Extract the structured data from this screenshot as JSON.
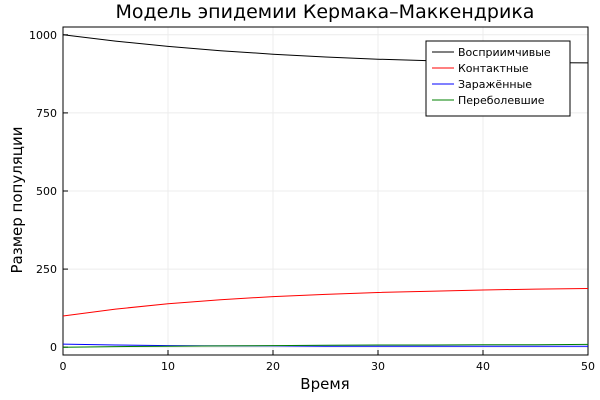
{
  "chart_data": {
    "type": "line",
    "title": "Модель эпидемии Кермака–Маккендрика",
    "xlabel": "Время",
    "ylabel": "Размер популяции",
    "xlim": [
      0,
      50
    ],
    "ylim": [
      -25,
      1025
    ],
    "xticks": [
      0,
      10,
      20,
      30,
      40,
      50
    ],
    "yticks": [
      0,
      250,
      500,
      750,
      1000
    ],
    "grid": true,
    "legend_position": "top-right",
    "series": [
      {
        "name": "Восприимчивые",
        "color": "#000000",
        "x": [
          0,
          5,
          10,
          15,
          20,
          25,
          30,
          35,
          40,
          45,
          50
        ],
        "values": [
          1000,
          980,
          963,
          949,
          938,
          929,
          922,
          917,
          913,
          911,
          910
        ]
      },
      {
        "name": "Контактные",
        "color": "#ff0000",
        "x": [
          0,
          5,
          10,
          15,
          20,
          25,
          30,
          35,
          40,
          45,
          50
        ],
        "values": [
          100,
          122,
          139,
          152,
          162,
          169,
          175,
          179,
          183,
          186,
          188
        ]
      },
      {
        "name": "Заражённые",
        "color": "#0000ff",
        "x": [
          0,
          5,
          10,
          15,
          20,
          25,
          30,
          35,
          40,
          45,
          50
        ],
        "values": [
          10,
          7,
          5,
          4,
          4,
          3,
          3,
          3,
          3,
          3,
          3
        ]
      },
      {
        "name": "Переболевшие",
        "color": "#008000",
        "x": [
          0,
          5,
          10,
          15,
          20,
          25,
          30,
          35,
          40,
          45,
          50
        ],
        "values": [
          0,
          2,
          3,
          4,
          5,
          6,
          7,
          7,
          8,
          8,
          9
        ]
      }
    ]
  }
}
